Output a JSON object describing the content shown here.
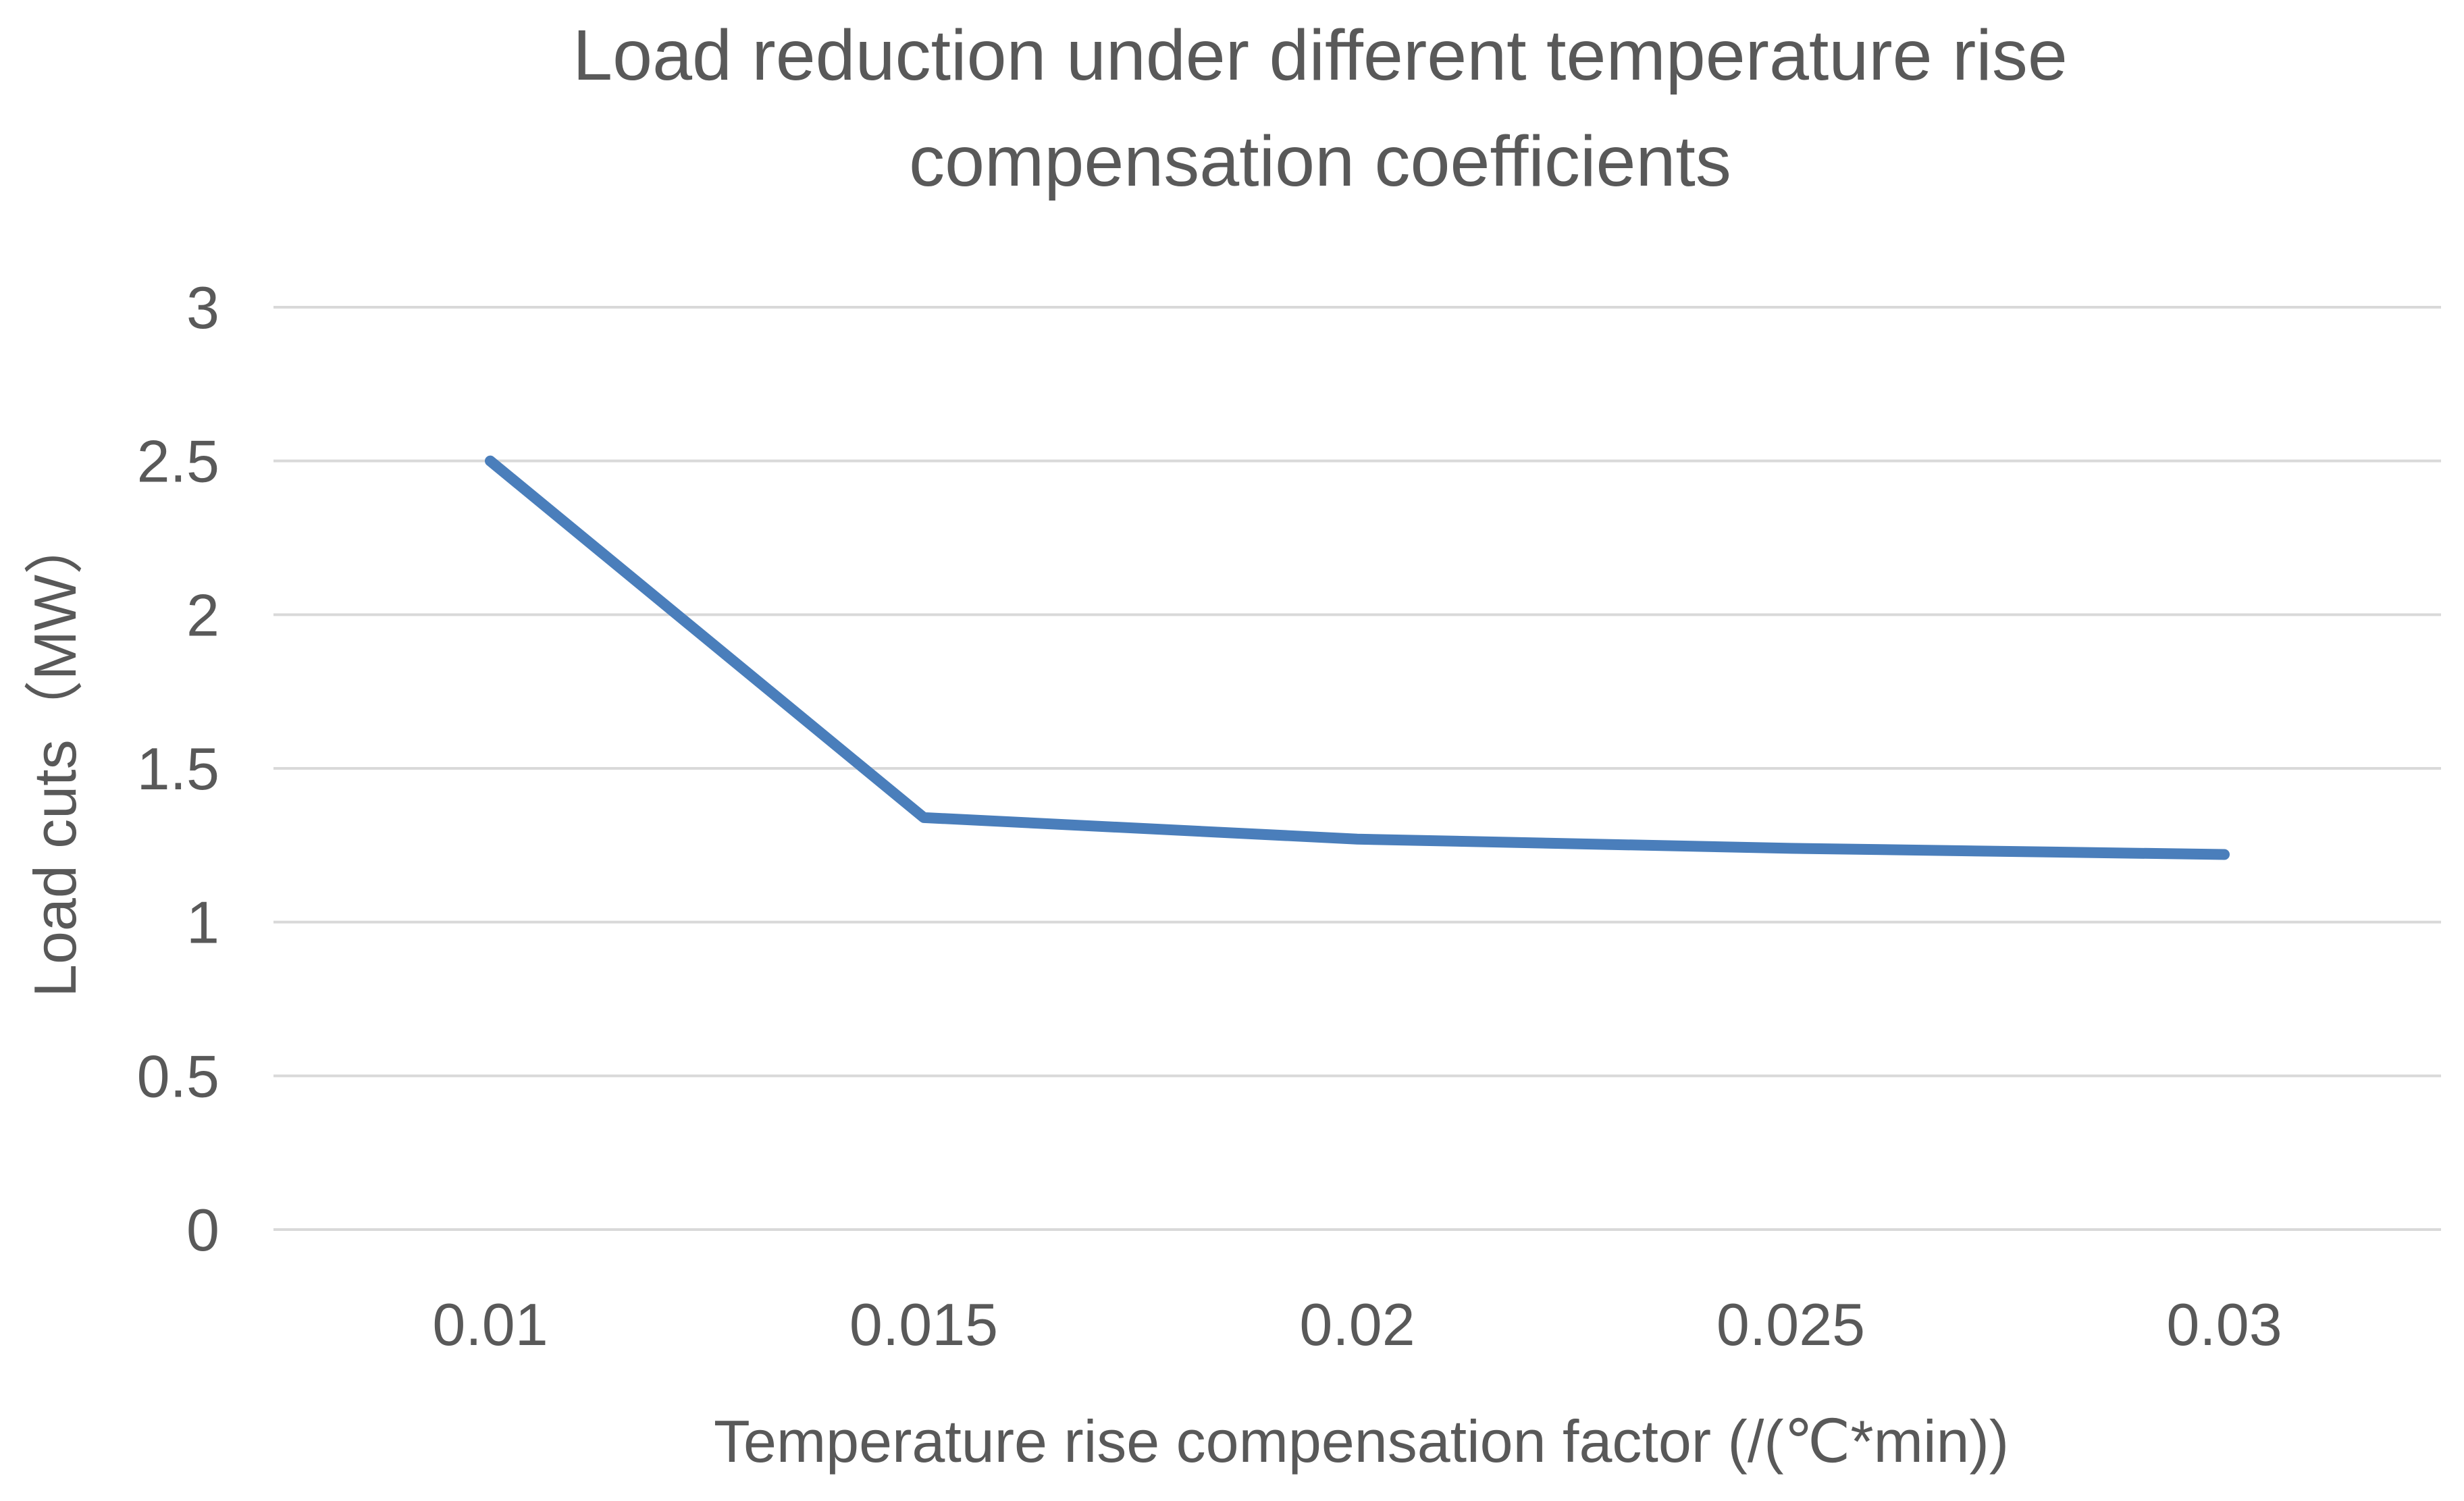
{
  "chart_data": {
    "type": "line",
    "title_lines": [
      "Load reduction under different temperature rise",
      "compensation coefficients"
    ],
    "xlabel": "Temperature rise compensation factor (/(℃*min))",
    "ylabel": "Load cuts（MW）",
    "categories": [
      "0.01",
      "0.015",
      "0.02",
      "0.025",
      "0.03"
    ],
    "y_ticks": [
      "0",
      "0.5",
      "1",
      "1.5",
      "2",
      "2.5",
      "3"
    ],
    "ylim": [
      0,
      3
    ],
    "grid": true,
    "legend": "none",
    "series": [
      {
        "name": "Load cuts",
        "color": "#4a7ebb",
        "values": [
          2.5,
          1.34,
          1.27,
          1.24,
          1.22
        ]
      }
    ]
  }
}
